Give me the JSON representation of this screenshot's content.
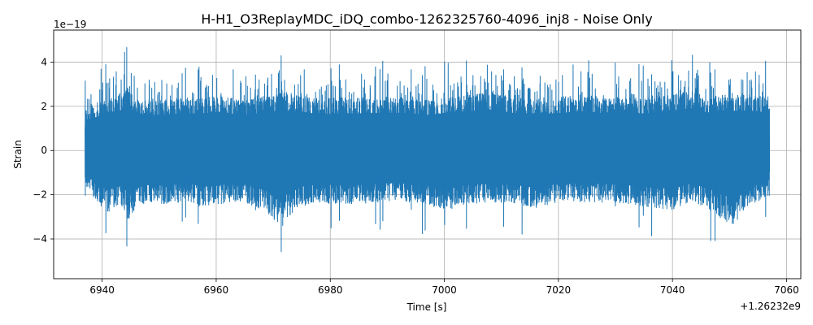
{
  "chart_data": {
    "type": "line",
    "title": "H-H1_O3ReplayMDC_iDQ_combo-1262325760-4096_inj8 - Noise Only",
    "xlabel": "Time [s]",
    "ylabel": "Strain",
    "x_offset_label": "+1.26232e9",
    "y_scale_label": "1e−19",
    "xlim": [
      6931.5,
      7062.5
    ],
    "ylim": [
      -5.8,
      5.45
    ],
    "x_ticks": [
      6940,
      6960,
      6980,
      7000,
      7020,
      7040,
      7060
    ],
    "x_tick_labels": [
      "6940",
      "6960",
      "6980",
      "7000",
      "7020",
      "7040",
      "7060"
    ],
    "y_ticks": [
      -4,
      -2,
      0,
      2,
      4
    ],
    "y_tick_labels": [
      "−4",
      "−2",
      "0",
      "2",
      "4"
    ],
    "grid": true,
    "series": [
      {
        "color": "#1f77b4",
        "x_start": 6937,
        "x_end": 7057,
        "envelope_x": [
          6937,
          6939,
          6941,
          6943,
          6944.5,
          6946,
          6948,
          6951,
          6955,
          6958,
          6961,
          6964,
          6968,
          6971.5,
          6974,
          6978,
          6982,
          6986,
          6990,
          6994,
          6998,
          7001,
          7004,
          7008,
          7012,
          7016,
          7020,
          7024,
          7028,
          7032,
          7036,
          7040,
          7043,
          7046,
          7050.5,
          7053,
          7057
        ],
        "envelope_max": [
          3.3,
          3.6,
          4.1,
          4.3,
          4.8,
          4.0,
          3.8,
          3.9,
          4.0,
          4.0,
          4.2,
          3.8,
          4.0,
          4.4,
          4.3,
          3.9,
          4.0,
          4.0,
          4.1,
          4.0,
          3.8,
          4.2,
          4.2,
          4.5,
          4.0,
          4.0,
          4.0,
          4.3,
          4.0,
          4.0,
          4.0,
          4.2,
          4.6,
          4.0,
          4.3,
          4.3,
          4.1
        ],
        "envelope_min": [
          -2.5,
          -3.5,
          -4.3,
          -3.8,
          -4.9,
          -4.0,
          -3.6,
          -3.8,
          -3.5,
          -4.0,
          -3.7,
          -3.5,
          -4.1,
          -5.3,
          -4.0,
          -3.6,
          -3.8,
          -3.7,
          -3.5,
          -3.6,
          -3.9,
          -4.1,
          -3.7,
          -3.6,
          -3.7,
          -4.0,
          -3.6,
          -3.6,
          -3.6,
          -3.7,
          -4.0,
          -4.1,
          -3.6,
          -4.0,
          -5.3,
          -3.9,
          -3.2
        ]
      }
    ]
  }
}
